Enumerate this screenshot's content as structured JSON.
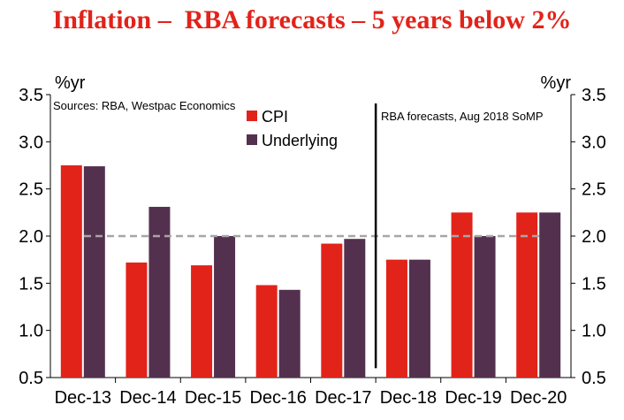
{
  "chart_data": {
    "type": "bar",
    "title": "Inflation –  RBA forecasts – 5 years below 2%",
    "y_unit_left": "%yr",
    "y_unit_right": "%yr",
    "source": "Sources: RBA, Westpac Economics",
    "annotation": "RBA forecasts, Aug 2018 SoMP",
    "categories": [
      "Dec-13",
      "Dec-14",
      "Dec-15",
      "Dec-16",
      "Dec-17",
      "Dec-18",
      "Dec-19",
      "Dec-20"
    ],
    "series": [
      {
        "name": "CPI",
        "color": "#e2231a",
        "values": [
          2.75,
          1.72,
          1.69,
          1.48,
          1.92,
          1.75,
          2.25,
          2.25
        ]
      },
      {
        "name": "Underlying",
        "color": "#54304f",
        "values": [
          2.74,
          2.31,
          2.0,
          1.43,
          1.97,
          1.75,
          2.0,
          2.25
        ]
      }
    ],
    "ylim": [
      0.5,
      3.5
    ],
    "yticks": [
      "0.5",
      "1.0",
      "1.5",
      "2.0",
      "2.5",
      "3.0",
      "3.5"
    ],
    "reference_line": 2.0,
    "forecast_divider_after": "Dec-17",
    "grid": false,
    "legend_position": "top-left"
  }
}
